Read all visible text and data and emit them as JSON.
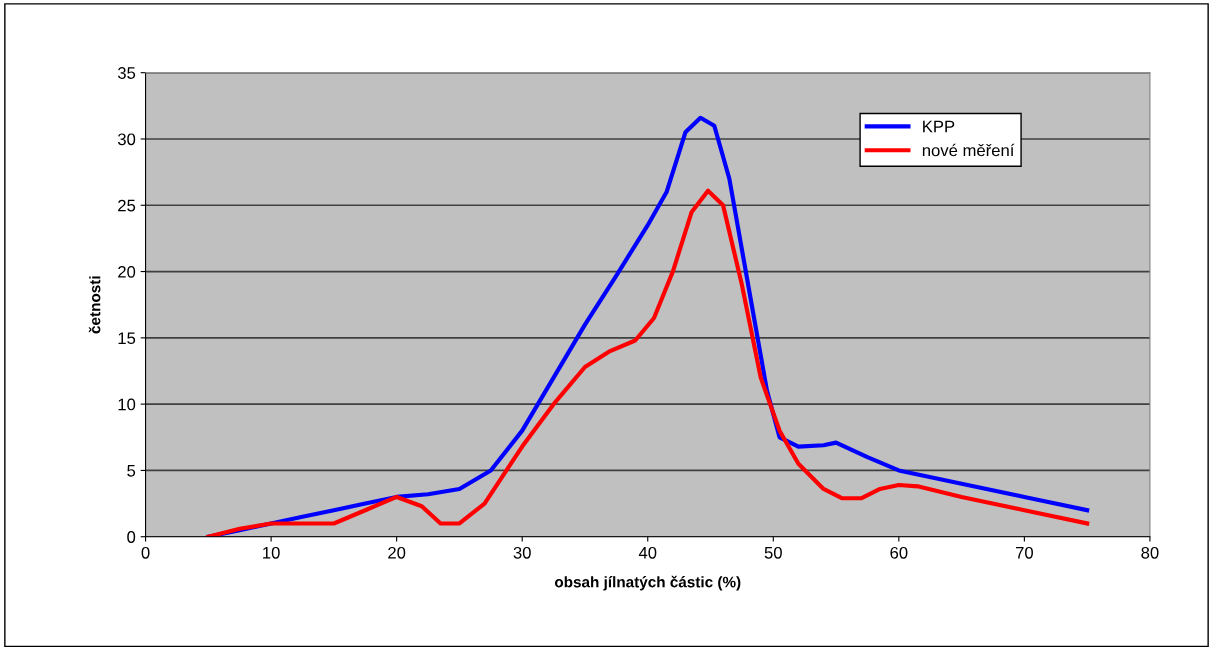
{
  "chart_data": {
    "type": "line",
    "xlabel": "obsah jílnatých částic (%)",
    "ylabel": "četnosti",
    "xlim": [
      0,
      80
    ],
    "xticks": [
      0,
      10,
      20,
      30,
      40,
      50,
      60,
      70,
      80
    ],
    "ylim": [
      0,
      35
    ],
    "yticks": [
      0,
      5,
      10,
      15,
      20,
      25,
      30,
      35
    ],
    "grid": "y",
    "legend": "top right",
    "marker": "none",
    "line_style": "solid",
    "series": [
      {
        "name": "KPP",
        "color": "#0000ff",
        "x": [
          5,
          7.5,
          10,
          12.5,
          15,
          17.5,
          20,
          22.5,
          25,
          27.5,
          30,
          32.5,
          35,
          37.5,
          40,
          41.5,
          43,
          44.2,
          45.3,
          46.5,
          48,
          49.5,
          50.5,
          52,
          54,
          55,
          57.5,
          60,
          65,
          70,
          75
        ],
        "values": [
          0,
          0.5,
          1,
          1.5,
          2,
          2.5,
          3,
          3.2,
          3.6,
          5,
          8,
          12,
          16,
          19.7,
          23.5,
          26,
          30.5,
          31.6,
          31,
          27,
          19,
          11,
          7.5,
          6.8,
          6.9,
          7.1,
          6,
          5,
          4,
          3,
          2
        ]
      },
      {
        "name": "nové měření",
        "color": "#ff0000",
        "x": [
          5,
          7.5,
          10,
          12.5,
          15,
          17.5,
          20,
          22,
          23.5,
          25,
          27,
          30,
          32.5,
          35,
          37,
          39,
          40.5,
          42,
          43.5,
          44.8,
          46,
          47.5,
          49,
          50.5,
          52,
          54,
          55.5,
          57,
          58.5,
          60,
          61.5,
          65,
          70,
          75
        ],
        "values": [
          0,
          0.6,
          1,
          1,
          1,
          2,
          3,
          2.3,
          1,
          1,
          2.5,
          6.8,
          10,
          12.8,
          14,
          14.8,
          16.5,
          20,
          24.5,
          26.1,
          25,
          19,
          12,
          8,
          5.5,
          3.6,
          2.9,
          2.9,
          3.6,
          3.9,
          3.8,
          3,
          2,
          1
        ]
      }
    ]
  }
}
